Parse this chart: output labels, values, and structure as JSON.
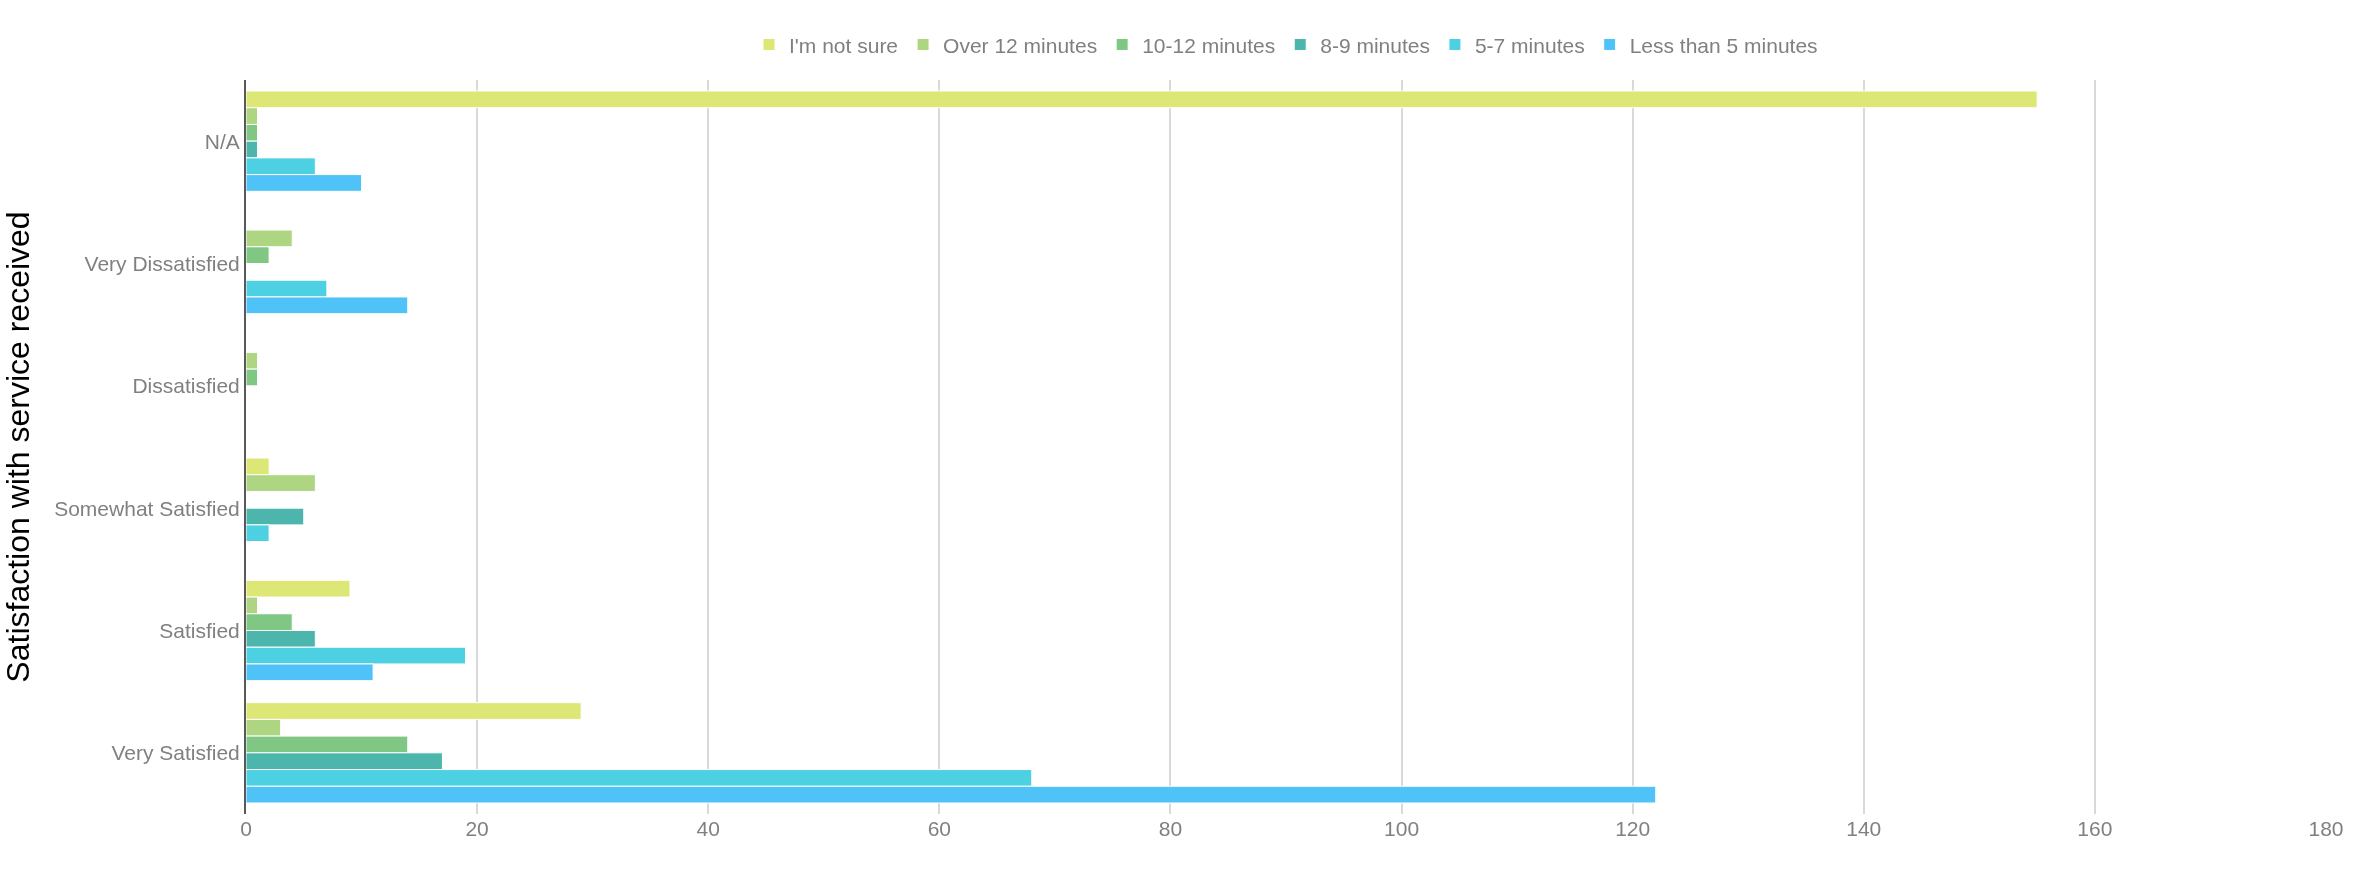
{
  "chart_data": {
    "type": "bar",
    "orientation": "horizontal",
    "ylabel": "Satisfaction with service received",
    "categories": [
      "N/A",
      "Very Dissatisfied",
      "Dissatisfied",
      "Somewhat Satisfied",
      "Satisfied",
      "Very Satisfied"
    ],
    "series": [
      {
        "name": "I'm not sure",
        "color": "#dce775",
        "values": [
          155,
          null,
          null,
          2,
          9,
          29
        ]
      },
      {
        "name": "Over 12 minutes",
        "color": "#aed581",
        "values": [
          1,
          4,
          1,
          6,
          1,
          3
        ]
      },
      {
        "name": "10-12 minutes",
        "color": "#81c784",
        "values": [
          1,
          2,
          1,
          null,
          4,
          14
        ]
      },
      {
        "name": "8-9 minutes",
        "color": "#4db6ac",
        "values": [
          1,
          null,
          null,
          5,
          6,
          17
        ]
      },
      {
        "name": "5-7 minutes",
        "color": "#4dd0e1",
        "values": [
          6,
          7,
          null,
          2,
          19,
          68
        ]
      },
      {
        "name": "Less than 5 minutes",
        "color": "#4fc3f7",
        "values": [
          10,
          14,
          null,
          null,
          11,
          122
        ]
      }
    ],
    "xlim": [
      0,
      180
    ],
    "xticks": [
      0,
      20,
      40,
      60,
      80,
      100,
      120,
      140,
      160,
      180
    ],
    "grid": "x",
    "legend": "top"
  }
}
